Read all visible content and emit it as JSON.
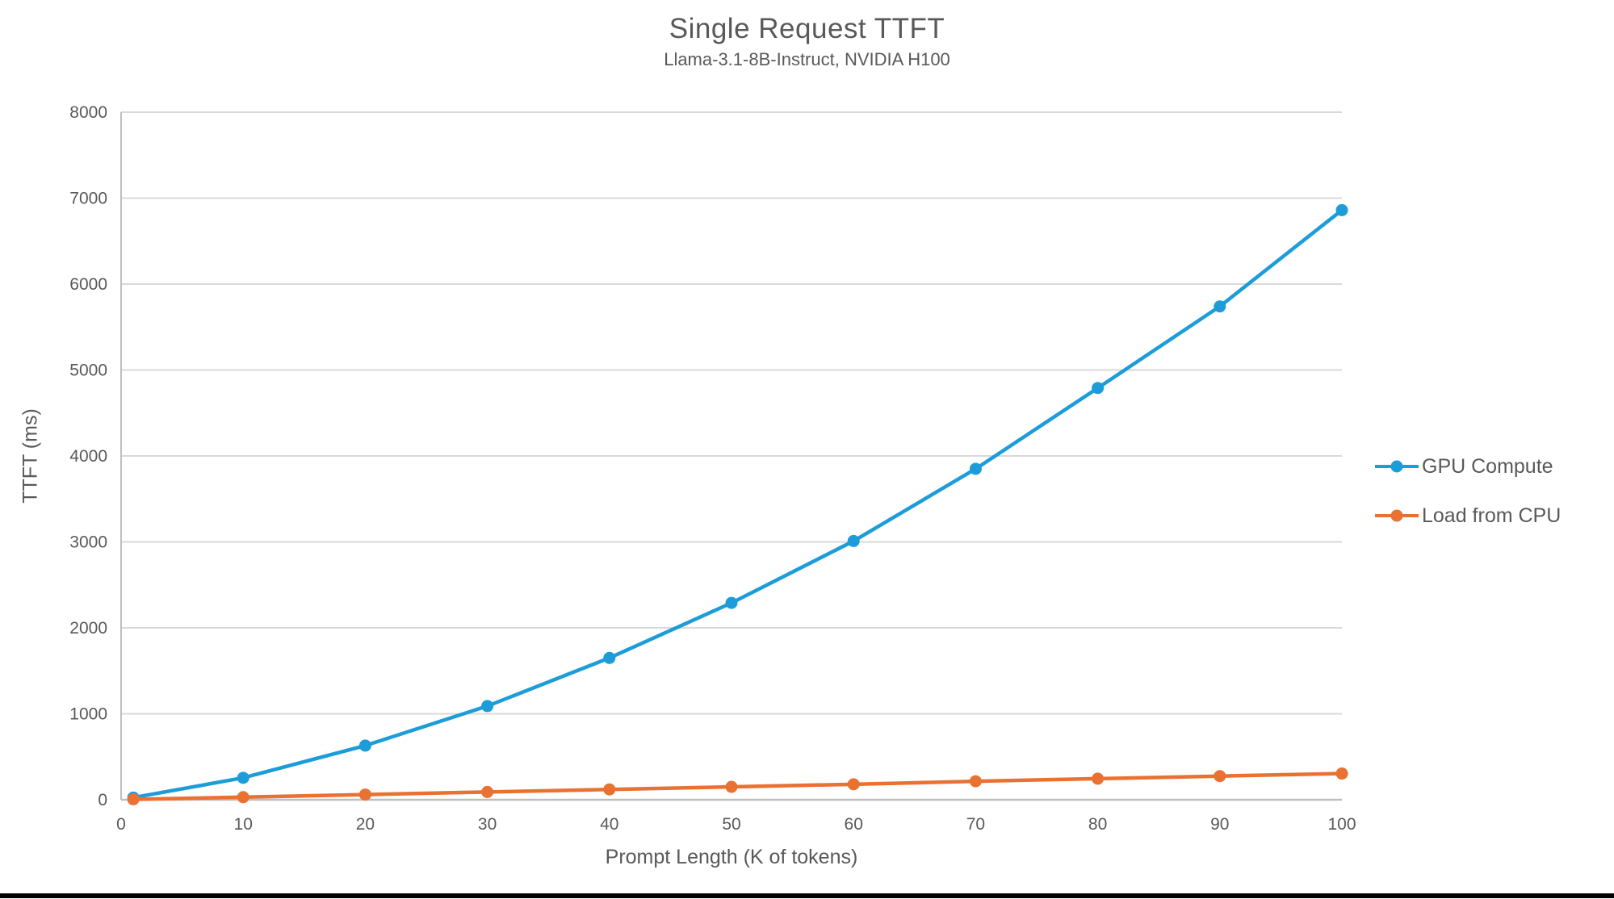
{
  "chart": {
    "title": "Single Request TTFT",
    "subtitle": "Llama-3.1-8B-Instruct, NVIDIA H100",
    "colors": {
      "text": "#595959",
      "gridline": "#D9D9D9",
      "axis": "#BFBFBF",
      "gpu_blue": "#1C9DD9",
      "cpu_orange": "#E97132"
    },
    "x_axis": {
      "title": "Prompt Length (K of tokens)",
      "ticks": [
        0,
        10,
        20,
        30,
        40,
        50,
        60,
        70,
        80,
        90,
        100
      ]
    },
    "y_axis": {
      "title": "TTFT (ms)",
      "ticks": [
        0,
        1000,
        2000,
        3000,
        4000,
        5000,
        6000,
        7000,
        8000
      ]
    }
  },
  "chart_data": {
    "type": "line",
    "title": "Single Request TTFT",
    "subtitle": "Llama-3.1-8B-Instruct, NVIDIA H100",
    "xlabel": "Prompt Length (K of tokens)",
    "ylabel": "TTFT (ms)",
    "xlim": [
      0,
      100
    ],
    "ylim": [
      0,
      8000
    ],
    "grid": "horizontal",
    "legend_position": "right",
    "x": [
      1,
      10,
      20,
      30,
      40,
      50,
      60,
      70,
      80,
      90,
      100
    ],
    "series": [
      {
        "name": "GPU Compute",
        "color": "#1C9DD9",
        "marker": "circle",
        "values": [
          25,
          255,
          630,
          1090,
          1650,
          2290,
          3010,
          3850,
          4790,
          5740,
          6860
        ]
      },
      {
        "name": "Load from CPU",
        "color": "#E97132",
        "marker": "circle",
        "values": [
          5,
          30,
          60,
          90,
          120,
          150,
          180,
          215,
          245,
          275,
          305
        ]
      }
    ]
  }
}
